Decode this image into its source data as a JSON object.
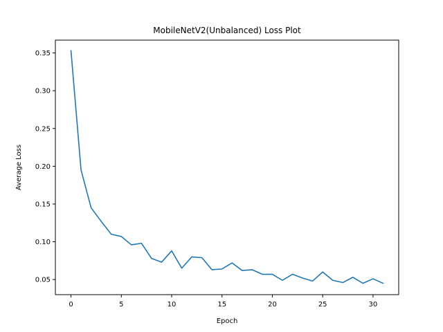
{
  "chart_data": {
    "type": "line",
    "title": "MobileNetV2(Unbalanced) Loss Plot",
    "xlabel": "Epoch",
    "ylabel": "Average Loss",
    "xlim": [
      -1.55,
      32.55
    ],
    "ylim": [
      0.03,
      0.367
    ],
    "x_ticks": [
      0,
      5,
      10,
      15,
      20,
      25,
      30
    ],
    "y_ticks": [
      0.05,
      0.1,
      0.15,
      0.2,
      0.25,
      0.3,
      0.35
    ],
    "grid": false,
    "series": [
      {
        "color": "#1f77b4",
        "x": [
          0,
          1,
          2,
          3,
          4,
          5,
          6,
          7,
          8,
          9,
          10,
          11,
          12,
          13,
          14,
          15,
          16,
          17,
          18,
          19,
          20,
          21,
          22,
          23,
          24,
          25,
          26,
          27,
          28,
          29,
          30,
          31
        ],
        "y": [
          0.353,
          0.195,
          0.145,
          0.127,
          0.11,
          0.107,
          0.096,
          0.098,
          0.078,
          0.073,
          0.088,
          0.065,
          0.08,
          0.079,
          0.063,
          0.064,
          0.072,
          0.062,
          0.063,
          0.057,
          0.057,
          0.049,
          0.057,
          0.052,
          0.048,
          0.06,
          0.049,
          0.046,
          0.053,
          0.045,
          0.051,
          0.045
        ]
      }
    ]
  }
}
